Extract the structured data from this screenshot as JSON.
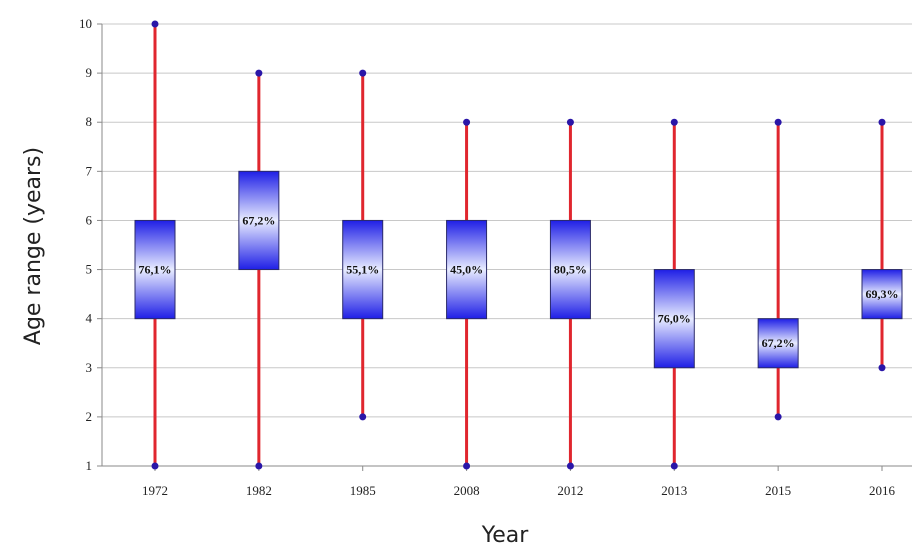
{
  "chart_data": {
    "type": "boxplot",
    "title": "",
    "xlabel": "Year",
    "ylabel": "Age range (years)",
    "ylim": [
      1,
      10
    ],
    "yticks": [
      1,
      2,
      3,
      4,
      5,
      6,
      7,
      8,
      9,
      10
    ],
    "grid": true,
    "categories": [
      "1972",
      "1982",
      "1985",
      "2008",
      "2012",
      "2013",
      "2015",
      "2016"
    ],
    "boxes": [
      {
        "category": "1972",
        "min": 1,
        "q1": 4,
        "q3": 6,
        "max": 10,
        "label": "76,1%"
      },
      {
        "category": "1982",
        "min": 1,
        "q1": 5,
        "q3": 7,
        "max": 9,
        "label": "67,2%"
      },
      {
        "category": "1985",
        "min": 2,
        "q1": 4,
        "q3": 6,
        "max": 9,
        "label": "55,1%"
      },
      {
        "category": "2008",
        "min": 1,
        "q1": 4,
        "q3": 6,
        "max": 8,
        "label": "45,0%"
      },
      {
        "category": "2012",
        "min": 1,
        "q1": 4,
        "q3": 6,
        "max": 8,
        "label": "80,5%"
      },
      {
        "category": "2013",
        "min": 1,
        "q1": 3,
        "q3": 5,
        "max": 8,
        "label": "76,0%"
      },
      {
        "category": "2015",
        "min": 2,
        "q1": 3,
        "q3": 4,
        "max": 8,
        "label": "67,2%"
      },
      {
        "category": "2016",
        "min": 3,
        "q1": 4,
        "q3": 5,
        "max": 8,
        "label": "69,3%"
      }
    ],
    "colors": {
      "whisker": "#e0262e",
      "endpoint": "#2a16a8",
      "box_edge": "#1f1fe6",
      "box_center": "#e8ecff",
      "grid": "#c8c8c8",
      "axis": "#8a8a8a"
    }
  }
}
